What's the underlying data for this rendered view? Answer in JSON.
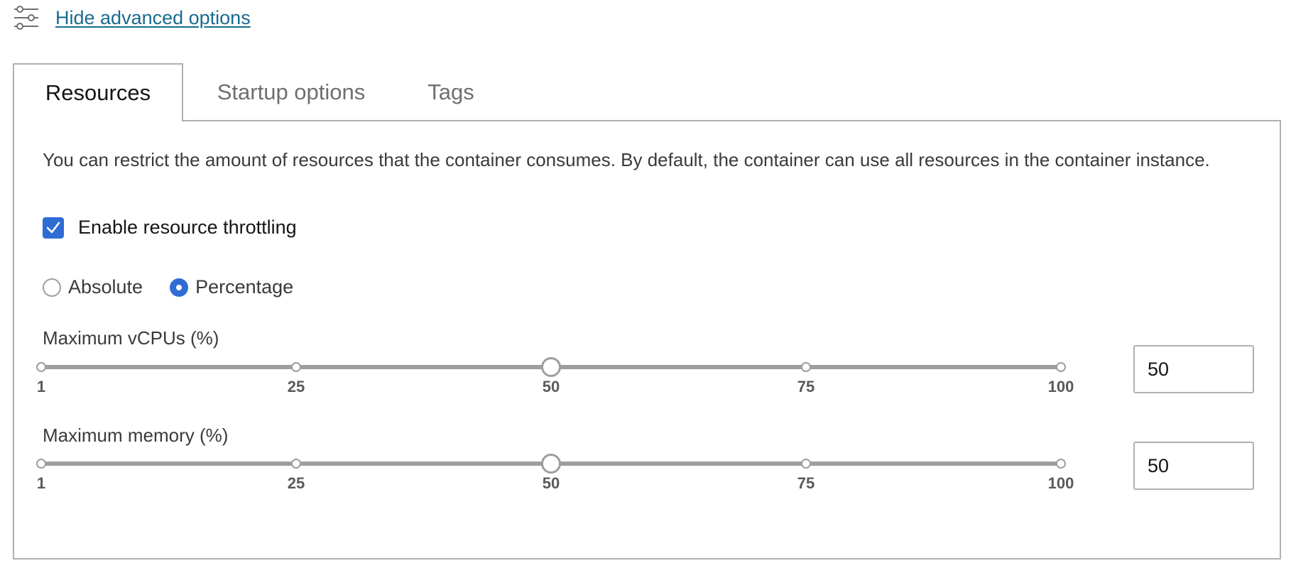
{
  "advanced_options": {
    "link_label": "Hide advanced options",
    "icon": "sliders-icon"
  },
  "tabs": [
    {
      "label": "Resources",
      "active": true
    },
    {
      "label": "Startup options",
      "active": false
    },
    {
      "label": "Tags",
      "active": false
    }
  ],
  "resources": {
    "description": "You can restrict the amount of resources that the container consumes. By default, the container can use all resources in the container instance.",
    "throttling_checkbox": {
      "label": "Enable resource throttling",
      "checked": true
    },
    "mode_radio": {
      "options": [
        {
          "label": "Absolute",
          "checked": false
        },
        {
          "label": "Percentage",
          "checked": true
        }
      ]
    },
    "vcpu": {
      "label": "Maximum vCPUs (%)",
      "value": "50",
      "min": 1,
      "max": 100,
      "ticks": [
        "1",
        "25",
        "50",
        "75",
        "100"
      ]
    },
    "memory": {
      "label": "Maximum memory (%)",
      "value": "50",
      "min": 1,
      "max": 100,
      "ticks": [
        "1",
        "25",
        "50",
        "75",
        "100"
      ]
    }
  },
  "colors": {
    "accent": "#2f6cd4",
    "link": "#1a6b8e",
    "track": "#9e9e9e"
  }
}
